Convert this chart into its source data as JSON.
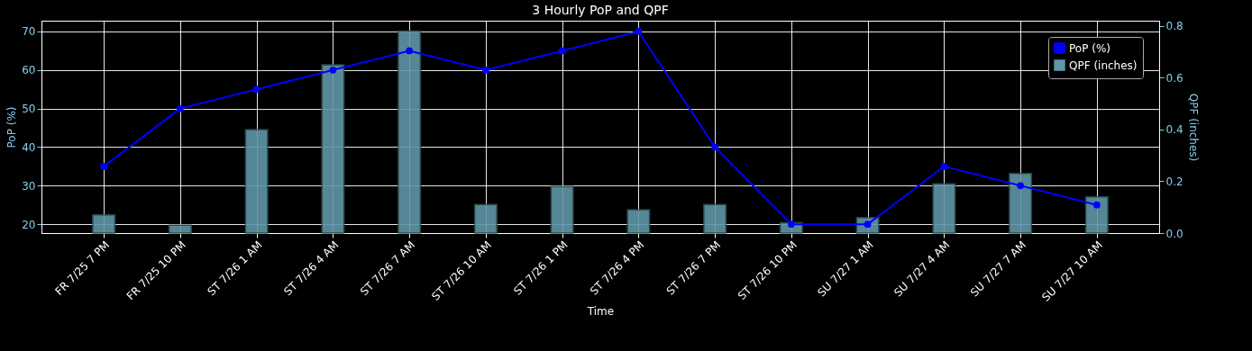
{
  "chart_data": {
    "type": "line",
    "title": "3 Hourly PoP and QPF",
    "xlabel": "Time",
    "ylabel": "PoP (%)",
    "y2label": "QPF (inches)",
    "categories": [
      "FR 7/25 7 PM",
      "FR 7/25 10 PM",
      "ST 7/26 1 AM",
      "ST 7/26 4 AM",
      "ST 7/26 7 AM",
      "ST 7/26 10 AM",
      "ST 7/26 1 PM",
      "ST 7/26 4 PM",
      "ST 7/26 7 PM",
      "ST 7/26 10 PM",
      "SU 7/27 1 AM",
      "SU 7/27 4 AM",
      "SU 7/27 7 AM",
      "SU 7/27 10 AM"
    ],
    "series": [
      {
        "name": "PoP (%)",
        "color": "#0000ff",
        "values": [
          35,
          50,
          55,
          60,
          65,
          60,
          65,
          70,
          40,
          20,
          20,
          35,
          30,
          25
        ]
      },
      {
        "name": "QPF (inches)",
        "type": "bar",
        "axis": "y2",
        "color": "#5f96a8",
        "values": [
          0.07,
          0.03,
          0.4,
          0.65,
          0.78,
          0.11,
          0.18,
          0.09,
          0.11,
          0.04,
          0.06,
          0.19,
          0.23,
          0.14
        ]
      }
    ],
    "ylim": [
      17.7,
      72.8
    ],
    "yticks": [
      20,
      30,
      40,
      50,
      60,
      70
    ],
    "y2lim": [
      0,
      0.82
    ],
    "y2ticks": [
      {
        "value": 0,
        "label": "0.0"
      },
      0.2,
      0.4,
      0.6,
      0.8
    ],
    "grid": true,
    "legend": "top right",
    "marker": "circle",
    "line_style": "solid"
  }
}
